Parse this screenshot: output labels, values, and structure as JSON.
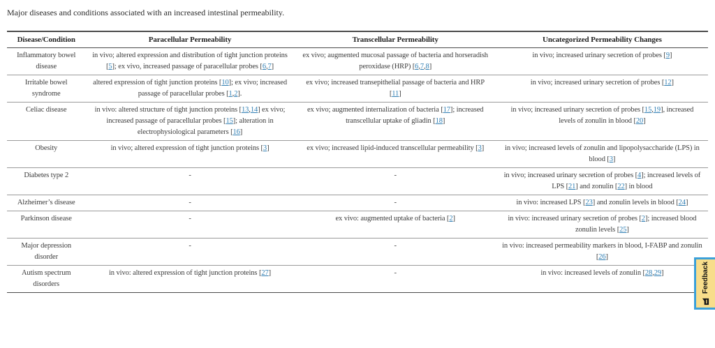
{
  "page": {
    "caption": "Major diseases and conditions associated with an increased intestinal permeability."
  },
  "table": {
    "columns": [
      "Disease/Condition",
      "Paracellular Permeability",
      "Transcellular Permeability",
      "Uncategorized Permeability Changes"
    ],
    "rows": [
      {
        "condition": "Inflammatory bowel disease",
        "paracellular": "in vivo; altered expression and distribution of tight junction proteins [5]; ex vivo, increased passage of paracellular probes [6,7]",
        "transcellular": "ex vivo; augmented mucosal passage of bacteria and horseradish peroxidase (HRP) [6,7,8]",
        "uncategorized": "in vivo; increased urinary secretion of probes [9]"
      },
      {
        "condition": "Irritable bowel syndrome",
        "paracellular": "altered expression of tight junction proteins [10]; ex vivo; increased passage of paracellular probes [1,2].",
        "transcellular": "ex vivo; increased transepithelial passage of bacteria and HRP [11]",
        "uncategorized": "in vivo; increased urinary secretion of probes [12]"
      },
      {
        "condition": "Celiac disease",
        "paracellular": "in vivo: altered structure of tight junction proteins [13,14] ex vivo; increased passage of paracellular probes [15]; alteration in electrophysiological parameters [16]",
        "transcellular": "ex vivo; augmented internalization of bacteria [17]; increased transcellular uptake of gliadin [18]",
        "uncategorized": "in vivo; increased urinary secretion of probes [15,19], increased levels of zonulin in blood [20]"
      },
      {
        "condition": "Obesity",
        "paracellular": "in vivo; altered expression of tight junction proteins [3]",
        "transcellular": "ex vivo; increased lipid-induced transcellular permeability [3]",
        "uncategorized": "in vivo; increased levels of zonulin and lipopolysaccharide (LPS) in blood [3]"
      },
      {
        "condition": "Diabetes type 2",
        "paracellular": "-",
        "transcellular": "-",
        "uncategorized": "in vivo; increased urinary secretion of probes [4]; increased levels of LPS [21] and zonulin [22] in blood"
      },
      {
        "condition": "Alzheimer’s disease",
        "paracellular": "-",
        "transcellular": "-",
        "uncategorized": "in vivo: increased LPS [23] and zonulin levels in blood [24]"
      },
      {
        "condition": "Parkinson disease",
        "paracellular": "-",
        "transcellular": "ex vivo: augmented uptake of bacteria [2]",
        "uncategorized": "in vivo: increased urinary secretion of probes [2]; increased blood zonulin levels [25]"
      },
      {
        "condition": "Major depression disorder",
        "paracellular": "-",
        "transcellular": "-",
        "uncategorized": "in vivo: increased permeability markers in blood, I-FABP and zonulin [26]"
      },
      {
        "condition": "Autism spectrum disorders",
        "paracellular": "in vivo: altered expression of tight junction proteins [27]",
        "transcellular": "-",
        "uncategorized": "in vivo: increased levels of zonulin [28,29]"
      }
    ]
  },
  "feedback": {
    "label": "Feedback"
  },
  "colors": {
    "link": "#2e7db2",
    "text": "#3b3b3b",
    "feedback_bg": "#f8dd8b",
    "feedback_border": "#3ba0d9"
  }
}
